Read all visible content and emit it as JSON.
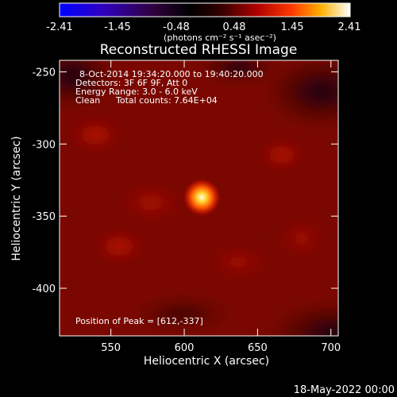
{
  "colorbar": {
    "ticks": [
      "-2.41",
      "-1.45",
      "-0.48",
      "0.48",
      "1.45",
      "2.41"
    ],
    "unit_label": "(photons cm⁻² s⁻¹ asec⁻²)",
    "range": [
      -2.41,
      2.41
    ],
    "colors": [
      "#0000ff",
      "#3a00a0",
      "#1a001a",
      "#000000",
      "#400000",
      "#b00000",
      "#ff4000",
      "#ffb000",
      "#ffffff"
    ]
  },
  "chart_data": {
    "type": "heatmap",
    "title": "Reconstructed RHESSI Image",
    "xlabel": "Heliocentric X (arcsec)",
    "ylabel": "Heliocentric Y (arcsec)",
    "xlim": [
      515,
      705
    ],
    "ylim": [
      -433,
      -242
    ],
    "xticks": [
      550,
      600,
      650,
      700
    ],
    "yticks": [
      -250,
      -300,
      -350,
      -400
    ],
    "peak": {
      "x": 612,
      "y": -337
    },
    "annotations": {
      "date_range": "8-Oct-2014 19:34:20.000 to 19:40:20.000",
      "detectors": "Detectors: 3F 6F 9F, Att 0",
      "energy": "Energy Range: 3.0 - 6.0 keV",
      "method": "Clean",
      "counts": "Total counts: 7.64E+04",
      "peak_label": "Position of Peak = [612,-337]"
    }
  },
  "footer": {
    "timestamp": "18-May-2022 00:00"
  }
}
